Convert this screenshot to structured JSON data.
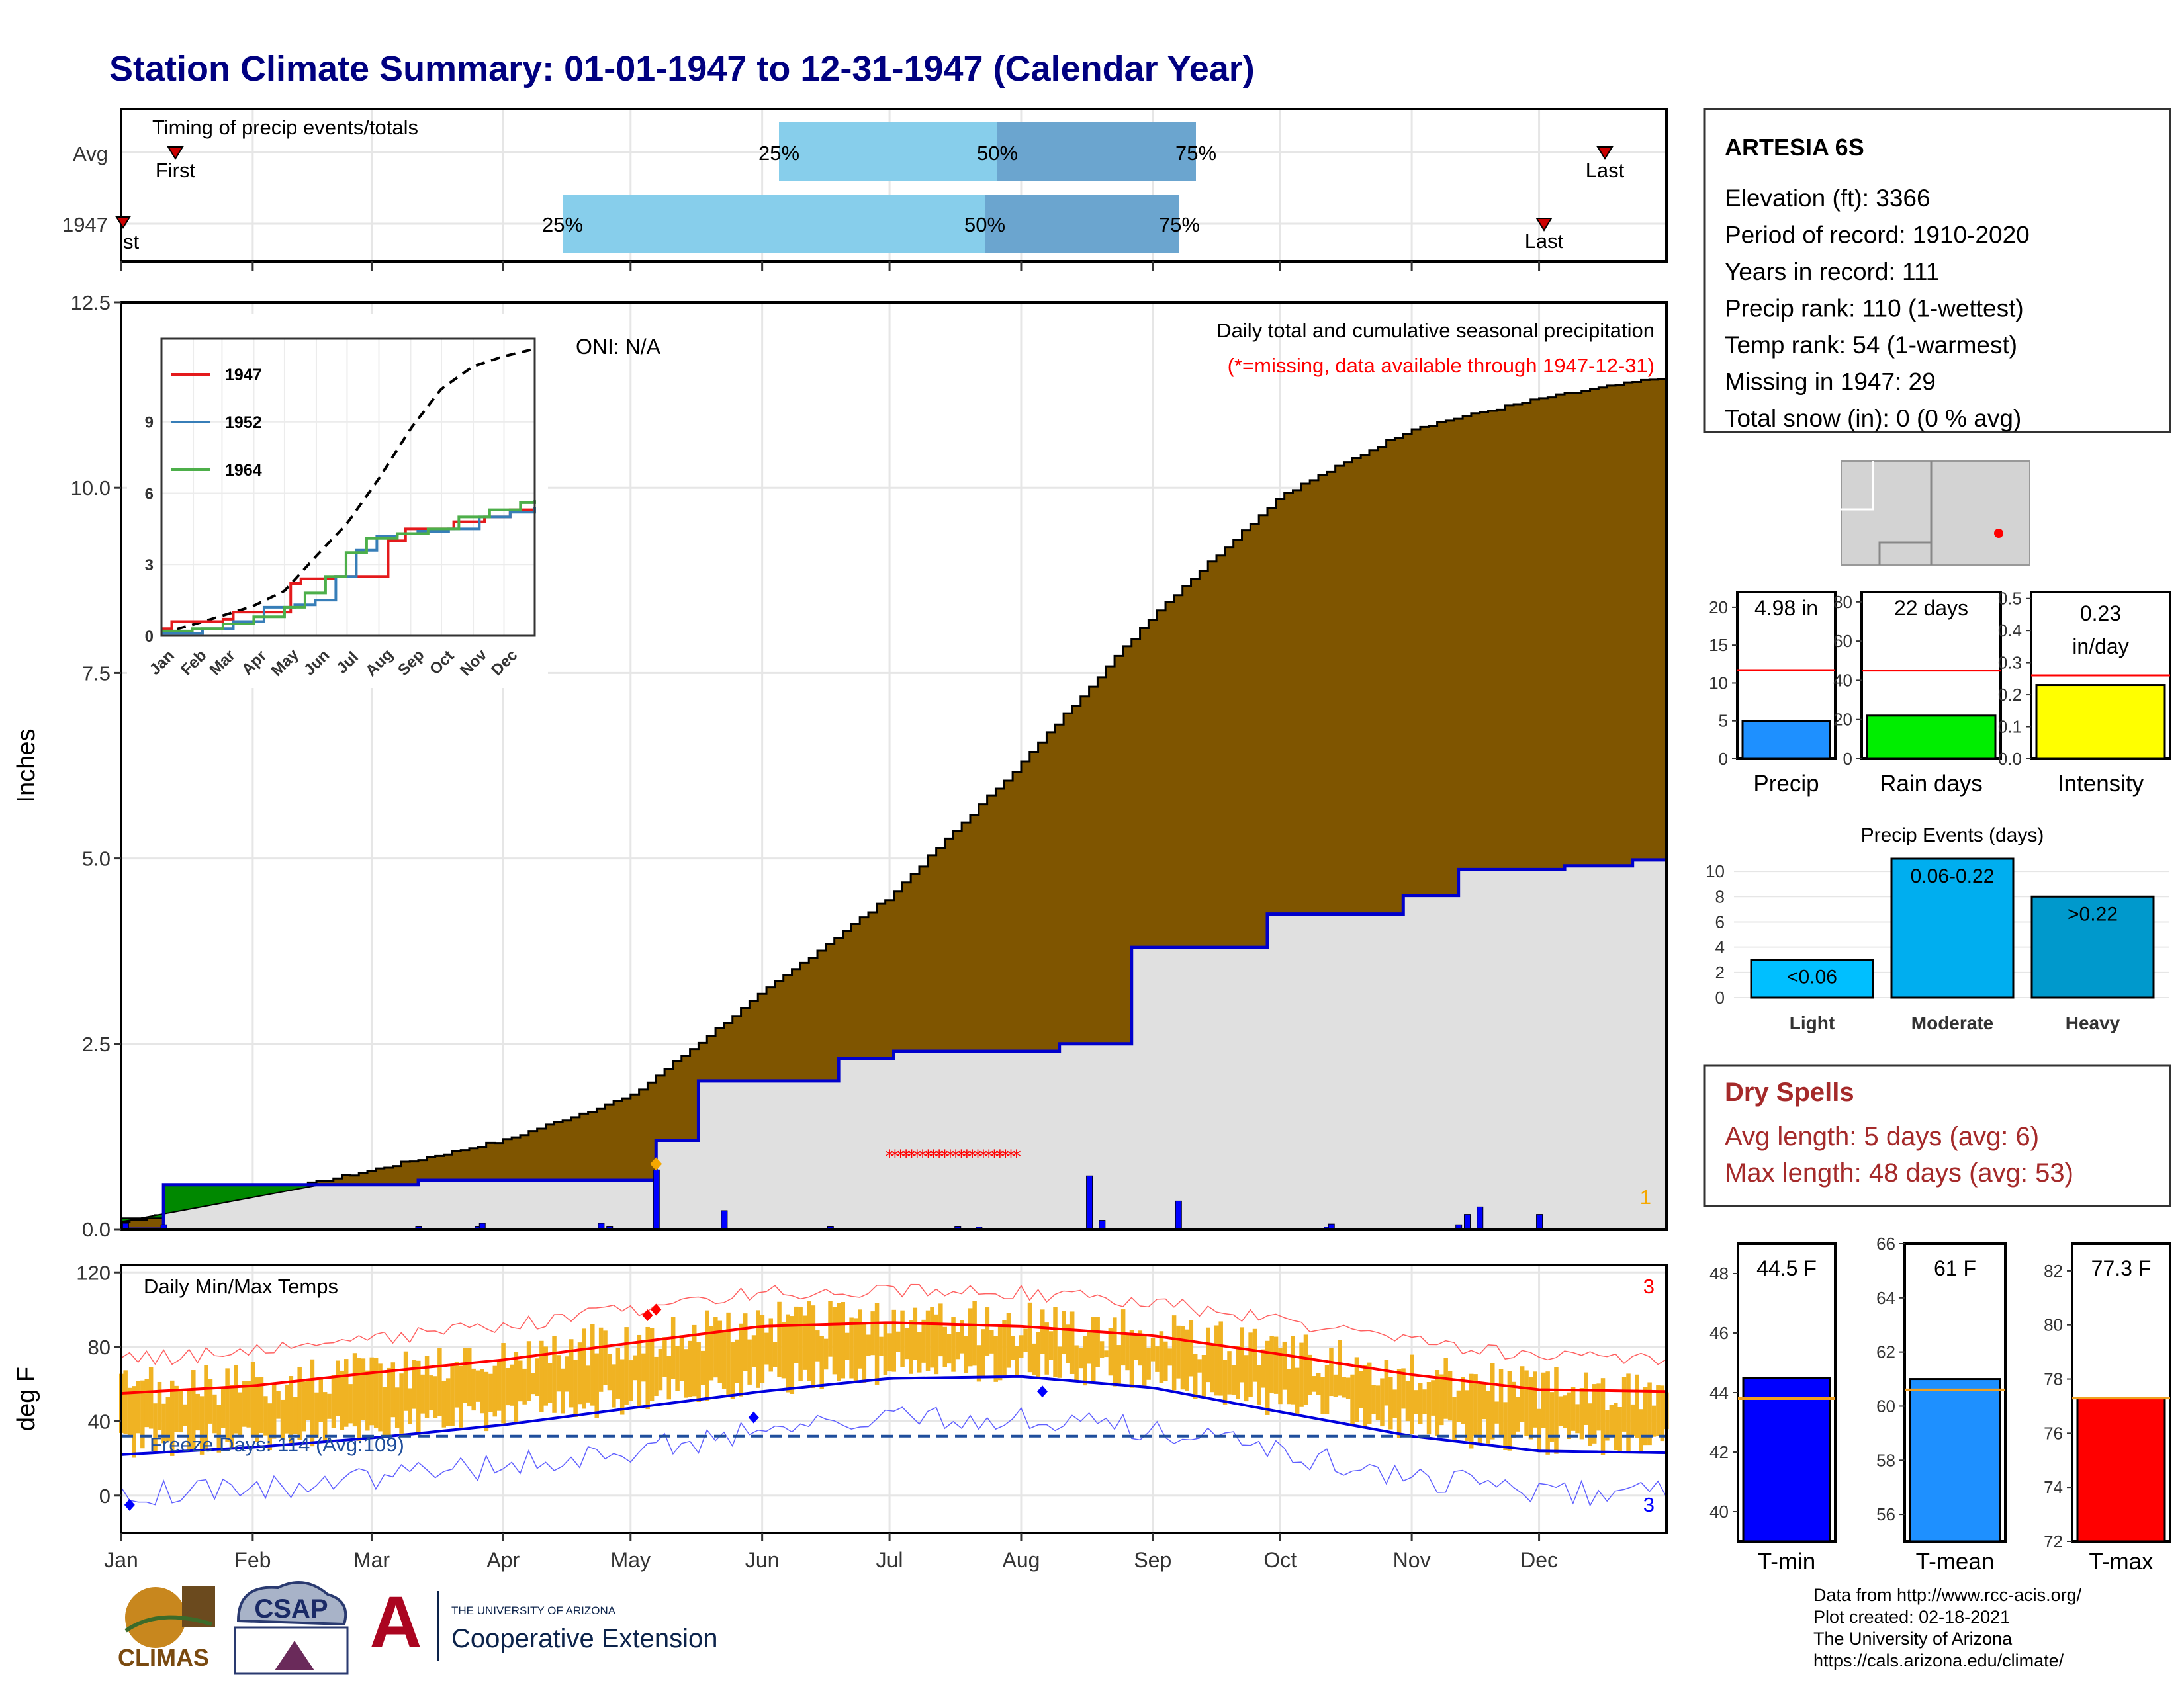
{
  "title": "Station Climate Summary: 01-01-1947 to 12-31-1947 (Calendar Year)",
  "months": [
    "Jan",
    "Feb",
    "Mar",
    "Apr",
    "May",
    "Jun",
    "Jul",
    "Aug",
    "Sep",
    "Oct",
    "Nov",
    "Dec"
  ],
  "timing": {
    "title": "Timing of precip events/totals",
    "rows": [
      "Avg",
      "1947"
    ],
    "first_label": "First",
    "first_label_1947": "st",
    "last_label": "Last",
    "pct_labels": [
      "25%",
      "50%",
      "75%"
    ]
  },
  "station": {
    "name": "ARTESIA 6S",
    "lines": [
      "Elevation (ft): 3366",
      "Period of record: 1910-2020",
      "Years in record: 111",
      "Precip rank: 110 (1-wettest)",
      "Temp rank: 54 (1-warmest)",
      "Missing in 1947: 29",
      "Total snow (in): 0 (0 % avg)"
    ]
  },
  "precip_panel": {
    "ylabel": "Inches",
    "oni": "ONI: N/A",
    "title": "Daily total and cumulative seasonal precipitation",
    "missing_note": "(*=missing, data available through 1947-12-31)",
    "count_label": "1",
    "y_ticks": [
      "0.0",
      "2.5",
      "5.0",
      "7.5",
      "10.0",
      "12.5"
    ]
  },
  "inset": {
    "legend": [
      "1947",
      "1952",
      "1964"
    ],
    "colors": [
      "#e41a1c",
      "#377eb8",
      "#4daf4a"
    ],
    "y_ticks": [
      "0",
      "3",
      "6",
      "9"
    ],
    "x_ticks": [
      "Jan",
      "Feb",
      "Mar",
      "Apr",
      "May",
      "Jun",
      "Jul",
      "Aug",
      "Sep",
      "Oct",
      "Nov",
      "Dec"
    ]
  },
  "temp_panel": {
    "title": "Daily Min/Max Temps",
    "ylabel": "deg F",
    "y_ticks": [
      "0",
      "40",
      "80",
      "120"
    ],
    "freeze": "Freeze Days: 114 (Avg:109)",
    "count_max": "3",
    "count_min": "3"
  },
  "minis": [
    {
      "value_text": "4.98 in",
      "label": "Precip",
      "ticks": [
        "0",
        "5",
        "10",
        "15",
        "20"
      ],
      "color": "#1e90ff"
    },
    {
      "value_text": "22 days",
      "label": "Rain days",
      "ticks": [
        "0",
        "20",
        "40",
        "60",
        "80"
      ],
      "color": "#00ee00"
    },
    {
      "value_text": "0.23",
      "value_text2": "in/day",
      "label": "Intensity",
      "ticks": [
        "0.0",
        "0.1",
        "0.2",
        "0.3",
        "0.4",
        "0.5"
      ],
      "color": "#ffff00"
    }
  ],
  "events": {
    "title": "Precip Events (days)",
    "ticks": [
      "0",
      "2",
      "4",
      "6",
      "8",
      "10"
    ],
    "bars": [
      {
        "label": "Light",
        "text": "<0.06",
        "color": "#00bfff"
      },
      {
        "label": "Moderate",
        "text": "0.06-0.22",
        "color": "#00aeef"
      },
      {
        "label": "Heavy",
        "text": ">0.22",
        "color": "#0099cc"
      }
    ]
  },
  "dry_spells": {
    "title": "Dry Spells",
    "avg": "Avg length: 5 days (avg: 6)",
    "max": "Max length: 48 days (avg: 53)"
  },
  "temp_minis": [
    {
      "value_text": "44.5 F",
      "label": "T-min",
      "ticks": [
        "40",
        "42",
        "44",
        "46",
        "48"
      ],
      "color": "#0000ff"
    },
    {
      "value_text": "61 F",
      "label": "T-mean",
      "ticks": [
        "56",
        "58",
        "60",
        "62",
        "64",
        "66"
      ],
      "color": "#1e90ff"
    },
    {
      "value_text": "77.3 F",
      "label": "T-max",
      "ticks": [
        "72",
        "74",
        "76",
        "78",
        "80",
        "82"
      ],
      "color": "#ff0000"
    }
  ],
  "footer": {
    "lines": [
      "Data from http://www.rcc-acis.org/",
      "Plot created: 02-18-2021",
      "The University of Arizona",
      "https://cals.arizona.edu/climate/"
    ],
    "logos": {
      "climas": "CLIMAS",
      "csap": "CSAP",
      "ua_small": "THE UNIVERSITY OF ARIZONA",
      "ua_big": "Cooperative Extension",
      "ua_letter": "A"
    }
  },
  "chart_data": [
    {
      "type": "area",
      "title": "Daily total and cumulative seasonal precipitation",
      "ylabel": "Inches",
      "ylim": [
        0,
        12.5
      ],
      "x_months": [
        "Jan",
        "Feb",
        "Mar",
        "Apr",
        "May",
        "Jun",
        "Jul",
        "Aug",
        "Sep",
        "Oct",
        "Nov",
        "Dec"
      ],
      "series": [
        {
          "name": "1947",
          "x_day": [
            0,
            10,
            60,
            70,
            126,
            136,
            169,
            182,
            221,
            223,
            238,
            262,
            270,
            285,
            302,
            315,
            340,
            356,
            364
          ],
          "values": [
            0.0,
            0.6,
            0.6,
            0.66,
            1.2,
            2.0,
            2.3,
            2.4,
            2.5,
            2.5,
            3.8,
            3.8,
            4.25,
            4.25,
            4.5,
            4.85,
            4.9,
            4.98,
            4.98
          ]
        },
        {
          "name": "average",
          "x_day": [
            0,
            31,
            59,
            90,
            120,
            151,
            181,
            212,
            243,
            273,
            304,
            334,
            364
          ],
          "values": [
            0.1,
            0.45,
            0.8,
            1.2,
            1.8,
            3.2,
            4.5,
            6.3,
            8.3,
            9.9,
            10.8,
            11.2,
            11.5
          ]
        }
      ]
    },
    {
      "type": "line",
      "title": "Daily Min/Max Temps",
      "ylabel": "deg F",
      "ylim": [
        -20,
        120
      ],
      "series": [
        {
          "name": "avg max",
          "x_day": [
            0,
            31,
            59,
            90,
            120,
            151,
            181,
            212,
            243,
            273,
            304,
            334,
            364
          ],
          "values": [
            55,
            59,
            66,
            73,
            82,
            91,
            93,
            91,
            86,
            76,
            65,
            57,
            56
          ]
        },
        {
          "name": "avg min",
          "x_day": [
            0,
            31,
            59,
            90,
            120,
            151,
            181,
            212,
            243,
            273,
            304,
            334,
            364
          ],
          "values": [
            22,
            26,
            31,
            38,
            47,
            56,
            63,
            64,
            58,
            45,
            32,
            24,
            23
          ]
        }
      ]
    },
    {
      "type": "bar",
      "categories": [
        "Precip"
      ],
      "values": [
        4.98
      ],
      "ylim": [
        0,
        22
      ],
      "ref": 11.7
    },
    {
      "type": "bar",
      "categories": [
        "Rain days"
      ],
      "values": [
        22
      ],
      "ylim": [
        0,
        85
      ],
      "ref": 45
    },
    {
      "type": "bar",
      "categories": [
        "Intensity"
      ],
      "values": [
        0.23
      ],
      "ylim": [
        0,
        0.52
      ],
      "ref": 0.26
    },
    {
      "type": "bar",
      "title": "Precip Events (days)",
      "categories": [
        "Light",
        "Moderate",
        "Heavy"
      ],
      "values": [
        3,
        11,
        8
      ],
      "ylim": [
        0,
        11
      ]
    },
    {
      "type": "bar",
      "categories": [
        "T-min"
      ],
      "values": [
        44.5
      ],
      "ylim": [
        39,
        49
      ],
      "ref": 43.8
    },
    {
      "type": "bar",
      "categories": [
        "T-mean"
      ],
      "values": [
        61
      ],
      "ylim": [
        55,
        66
      ],
      "ref": 60.6
    },
    {
      "type": "bar",
      "categories": [
        "T-max"
      ],
      "values": [
        77.3
      ],
      "ylim": [
        72,
        83
      ],
      "ref": 77.3
    }
  ]
}
